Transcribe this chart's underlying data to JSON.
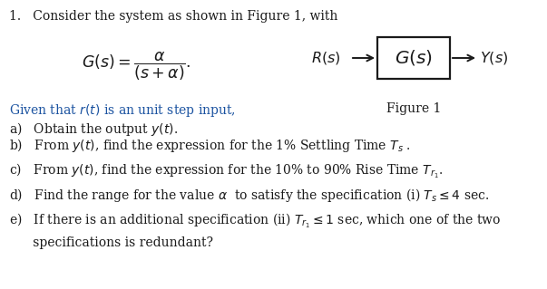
{
  "bg_color": "#ffffff",
  "text_color": "#1a1a1a",
  "blue_color": "#1a52a0",
  "dark_blue": "#2255a0",
  "fig_width": 6.03,
  "fig_height": 3.19,
  "dpi": 100,
  "title_line": "1.   Consider the system as shown in Figure 1, with",
  "given_line": "Given that $r(t)$ is an unit step input,",
  "figure_label": "Figure 1",
  "item_a": "a)   Obtain the output $y(t)$.",
  "item_b": "b)   From $y(t)$, find the expression for the 1% Settling Time $T_s$ .",
  "item_c": "c)   From $y(t)$, find the expression for the 10% to 90% Rise Time $T_{r_1}$.",
  "item_d": "d)   Find the range for the value $\\alpha$  to satisfy the specification (i) $T_s \\leq 4$ sec.",
  "item_e1": "e)   If there is an additional specification (ii) $T_{r_1} \\leq 1$ sec, which one of the two",
  "item_e2": "      specifications is redundant?",
  "rs_label": "$R(s)$",
  "gs_label": "$G(s)$",
  "ys_label": "$Y(s)$",
  "formula": "$G(s) = \\dfrac{\\alpha}{(s+\\alpha)}$.",
  "font_size": 10.0,
  "formula_font_size": 12.5,
  "diagram_font_size": 11.5
}
